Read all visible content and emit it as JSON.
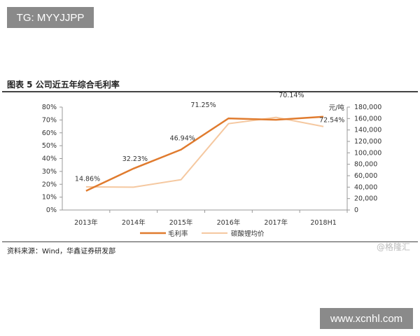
{
  "watermarks": {
    "top_left": "TG: MYYJJPP",
    "bottom_right": "www.xcnhl.com",
    "brand": "@格隆汇"
  },
  "header": {
    "title": "图表 5 公司近五年综合毛利率"
  },
  "footer": {
    "source": "资料来源：Wind，华鑫证券研发部"
  },
  "chart_data": {
    "type": "line",
    "title": "图表 5 公司近五年综合毛利率",
    "categories": [
      "2013年",
      "2014年",
      "2015年",
      "2016年",
      "2017年",
      "2018H1"
    ],
    "y_left": {
      "lim": [
        0,
        80
      ],
      "ticks": [
        "0%",
        "10%",
        "20%",
        "30%",
        "40%",
        "50%",
        "60%",
        "70%",
        "80%"
      ]
    },
    "y_right": {
      "label": "元/吨",
      "lim": [
        0,
        180000
      ],
      "ticks": [
        "0",
        "20,000",
        "40,000",
        "60,000",
        "80,000",
        "100,000",
        "120,000",
        "140,000",
        "160,000",
        "180,000"
      ]
    },
    "series": [
      {
        "name": "毛利率",
        "axis": "left",
        "color": "#e07b2e",
        "values": [
          14.86,
          32.23,
          46.94,
          71.25,
          70.14,
          72.54
        ],
        "labels": [
          "14.86%",
          "32.23%",
          "46.94%",
          "71.25%",
          "70.14%",
          "72.54%"
        ]
      },
      {
        "name": "碳酸锂均价",
        "axis": "right",
        "color": "#f5c8a0",
        "values": [
          40500,
          40000,
          53000,
          151000,
          162000,
          146000
        ]
      }
    ],
    "legend": "bottom",
    "grid": false
  }
}
